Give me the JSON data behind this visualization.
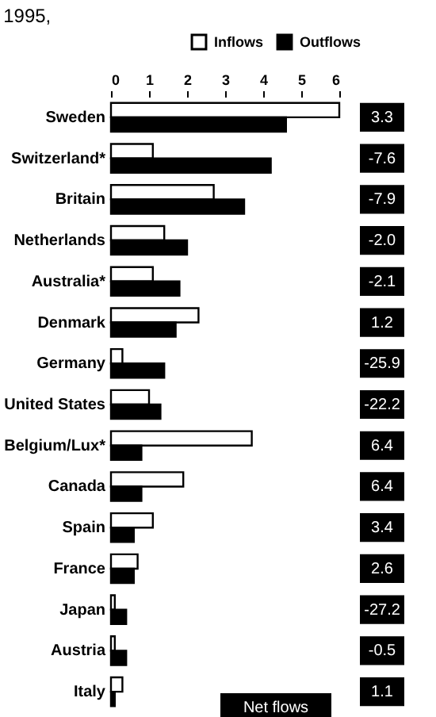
{
  "chart_data": {
    "type": "bar",
    "orientation": "horizontal",
    "title": "1995,",
    "categories": [
      "Sweden",
      "Switzerland*",
      "Britain",
      "Netherlands",
      "Australia*",
      "Denmark",
      "Germany",
      "United States",
      "Belgium/Lux*",
      "Canada",
      "Spain",
      "France",
      "Japan",
      "Austria",
      "Italy"
    ],
    "series": [
      {
        "name": "Inflows",
        "color": "#ffffff",
        "values": [
          6.0,
          1.1,
          2.7,
          1.4,
          1.1,
          2.3,
          0.3,
          1.0,
          3.7,
          1.9,
          1.1,
          0.7,
          0.1,
          0.1,
          0.3
        ]
      },
      {
        "name": "Outflows",
        "color": "#000000",
        "values": [
          4.6,
          4.2,
          3.5,
          2.0,
          1.8,
          1.7,
          1.4,
          1.3,
          0.8,
          0.8,
          0.6,
          0.6,
          0.4,
          0.4,
          0.1
        ]
      }
    ],
    "xlim": [
      0,
      6
    ],
    "xticks": [
      0,
      1,
      2,
      3,
      4,
      5,
      6
    ],
    "legend": "top right",
    "grid": false,
    "annotations": [
      "3.3",
      "-7.6",
      "-7.9",
      "-2.0",
      "-2.1",
      "1.2",
      "-25.9",
      "-22.2",
      "6.4",
      "6.4",
      "3.4",
      "2.6",
      "-27.2",
      "-0.5",
      "1.1",
      "Net flows"
    ]
  }
}
